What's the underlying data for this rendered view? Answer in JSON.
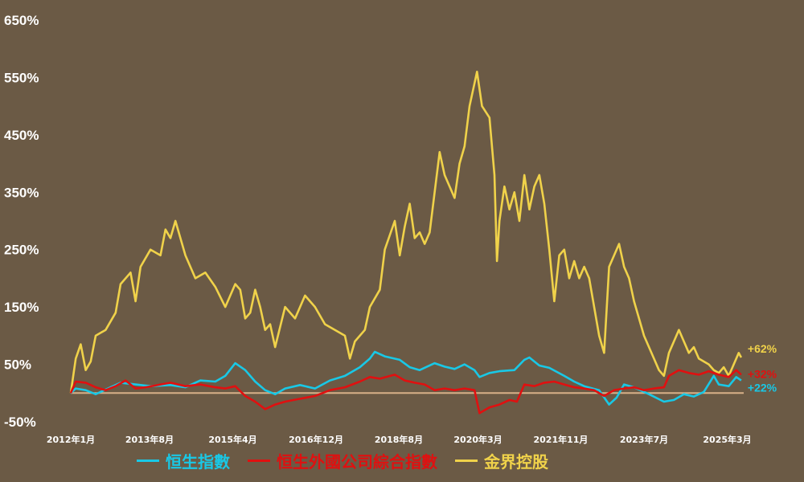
{
  "chart_data": {
    "type": "line",
    "title": "",
    "xlabel": "",
    "ylabel": "",
    "ylim": [
      -50,
      650
    ],
    "y_ticks": [
      "650%",
      "550%",
      "450%",
      "350%",
      "250%",
      "150%",
      "50%",
      "-50%"
    ],
    "y_tick_values": [
      650,
      550,
      450,
      350,
      250,
      150,
      50,
      -50
    ],
    "x_range": [
      2012.0,
      2025.5
    ],
    "x_ticks": [
      "2012年1月",
      "2013年8月",
      "2015年4月",
      "2016年12月",
      "2018年8月",
      "2020年3月",
      "2021年11月",
      "2023年7月",
      "2025年3月"
    ],
    "x_tick_values": [
      2012.0,
      2013.58,
      2015.25,
      2016.92,
      2018.58,
      2020.17,
      2021.83,
      2023.5,
      2025.17
    ],
    "zero_line": 0,
    "series": [
      {
        "name": "恒生指數",
        "color": "#19c8e6",
        "end_label": "+22%",
        "points": [
          [
            2012.0,
            0
          ],
          [
            2012.1,
            8
          ],
          [
            2012.3,
            5
          ],
          [
            2012.5,
            -2
          ],
          [
            2012.8,
            10
          ],
          [
            2013.0,
            18
          ],
          [
            2013.3,
            15
          ],
          [
            2013.6,
            12
          ],
          [
            2014.0,
            14
          ],
          [
            2014.3,
            10
          ],
          [
            2014.6,
            22
          ],
          [
            2014.9,
            20
          ],
          [
            2015.1,
            30
          ],
          [
            2015.3,
            52
          ],
          [
            2015.5,
            40
          ],
          [
            2015.7,
            20
          ],
          [
            2015.9,
            5
          ],
          [
            2016.1,
            -2
          ],
          [
            2016.3,
            8
          ],
          [
            2016.6,
            14
          ],
          [
            2016.9,
            8
          ],
          [
            2017.2,
            22
          ],
          [
            2017.5,
            30
          ],
          [
            2017.8,
            45
          ],
          [
            2018.0,
            60
          ],
          [
            2018.1,
            72
          ],
          [
            2018.3,
            64
          ],
          [
            2018.6,
            58
          ],
          [
            2018.8,
            45
          ],
          [
            2019.0,
            40
          ],
          [
            2019.3,
            52
          ],
          [
            2019.5,
            46
          ],
          [
            2019.7,
            42
          ],
          [
            2019.9,
            50
          ],
          [
            2020.1,
            40
          ],
          [
            2020.2,
            28
          ],
          [
            2020.4,
            35
          ],
          [
            2020.6,
            38
          ],
          [
            2020.9,
            40
          ],
          [
            2021.1,
            58
          ],
          [
            2021.2,
            62
          ],
          [
            2021.4,
            48
          ],
          [
            2021.6,
            44
          ],
          [
            2021.9,
            30
          ],
          [
            2022.1,
            20
          ],
          [
            2022.3,
            12
          ],
          [
            2022.6,
            5
          ],
          [
            2022.8,
            -20
          ],
          [
            2022.95,
            -8
          ],
          [
            2023.1,
            15
          ],
          [
            2023.3,
            10
          ],
          [
            2023.6,
            -2
          ],
          [
            2023.9,
            -15
          ],
          [
            2024.1,
            -12
          ],
          [
            2024.3,
            -2
          ],
          [
            2024.5,
            -6
          ],
          [
            2024.7,
            2
          ],
          [
            2024.9,
            30
          ],
          [
            2025.0,
            15
          ],
          [
            2025.2,
            12
          ],
          [
            2025.35,
            28
          ],
          [
            2025.45,
            22
          ]
        ]
      },
      {
        "name": "恒生外國公司綜合指數",
        "color": "#e01010",
        "end_label": "+32%",
        "points": [
          [
            2012.0,
            0
          ],
          [
            2012.1,
            20
          ],
          [
            2012.3,
            18
          ],
          [
            2012.5,
            10
          ],
          [
            2012.7,
            5
          ],
          [
            2012.9,
            12
          ],
          [
            2013.1,
            22
          ],
          [
            2013.3,
            8
          ],
          [
            2013.5,
            10
          ],
          [
            2013.8,
            15
          ],
          [
            2014.0,
            18
          ],
          [
            2014.3,
            12
          ],
          [
            2014.6,
            15
          ],
          [
            2014.9,
            10
          ],
          [
            2015.1,
            8
          ],
          [
            2015.3,
            12
          ],
          [
            2015.5,
            -5
          ],
          [
            2015.7,
            -15
          ],
          [
            2015.9,
            -28
          ],
          [
            2016.1,
            -20
          ],
          [
            2016.3,
            -15
          ],
          [
            2016.6,
            -10
          ],
          [
            2016.9,
            -5
          ],
          [
            2017.2,
            5
          ],
          [
            2017.5,
            10
          ],
          [
            2017.8,
            20
          ],
          [
            2018.0,
            28
          ],
          [
            2018.2,
            25
          ],
          [
            2018.5,
            32
          ],
          [
            2018.7,
            22
          ],
          [
            2018.9,
            18
          ],
          [
            2019.1,
            15
          ],
          [
            2019.3,
            5
          ],
          [
            2019.5,
            8
          ],
          [
            2019.7,
            5
          ],
          [
            2019.9,
            8
          ],
          [
            2020.1,
            5
          ],
          [
            2020.2,
            -35
          ],
          [
            2020.4,
            -25
          ],
          [
            2020.6,
            -20
          ],
          [
            2020.8,
            -12
          ],
          [
            2020.95,
            -15
          ],
          [
            2021.1,
            15
          ],
          [
            2021.3,
            12
          ],
          [
            2021.5,
            18
          ],
          [
            2021.7,
            20
          ],
          [
            2021.9,
            15
          ],
          [
            2022.1,
            10
          ],
          [
            2022.3,
            8
          ],
          [
            2022.5,
            5
          ],
          [
            2022.7,
            -5
          ],
          [
            2022.9,
            5
          ],
          [
            2023.1,
            8
          ],
          [
            2023.3,
            10
          ],
          [
            2023.5,
            5
          ],
          [
            2023.7,
            8
          ],
          [
            2023.9,
            10
          ],
          [
            2024.0,
            30
          ],
          [
            2024.2,
            40
          ],
          [
            2024.4,
            35
          ],
          [
            2024.6,
            32
          ],
          [
            2024.8,
            38
          ],
          [
            2025.0,
            32
          ],
          [
            2025.2,
            28
          ],
          [
            2025.35,
            40
          ],
          [
            2025.45,
            32
          ]
        ]
      },
      {
        "name": "金界控股",
        "color": "#f0d24a",
        "end_label": "+62%",
        "points": [
          [
            2012.0,
            0
          ],
          [
            2012.1,
            60
          ],
          [
            2012.2,
            85
          ],
          [
            2012.3,
            40
          ],
          [
            2012.4,
            55
          ],
          [
            2012.5,
            100
          ],
          [
            2012.7,
            110
          ],
          [
            2012.9,
            140
          ],
          [
            2013.0,
            190
          ],
          [
            2013.2,
            210
          ],
          [
            2013.3,
            160
          ],
          [
            2013.4,
            220
          ],
          [
            2013.6,
            250
          ],
          [
            2013.8,
            240
          ],
          [
            2013.9,
            285
          ],
          [
            2014.0,
            270
          ],
          [
            2014.1,
            300
          ],
          [
            2014.3,
            240
          ],
          [
            2014.5,
            200
          ],
          [
            2014.7,
            210
          ],
          [
            2014.9,
            185
          ],
          [
            2015.1,
            150
          ],
          [
            2015.3,
            190
          ],
          [
            2015.4,
            180
          ],
          [
            2015.5,
            130
          ],
          [
            2015.6,
            140
          ],
          [
            2015.7,
            180
          ],
          [
            2015.8,
            150
          ],
          [
            2015.9,
            110
          ],
          [
            2016.0,
            120
          ],
          [
            2016.1,
            80
          ],
          [
            2016.3,
            150
          ],
          [
            2016.5,
            130
          ],
          [
            2016.7,
            170
          ],
          [
            2016.9,
            150
          ],
          [
            2017.1,
            120
          ],
          [
            2017.3,
            110
          ],
          [
            2017.5,
            100
          ],
          [
            2017.6,
            60
          ],
          [
            2017.7,
            90
          ],
          [
            2017.9,
            110
          ],
          [
            2018.0,
            150
          ],
          [
            2018.2,
            180
          ],
          [
            2018.3,
            250
          ],
          [
            2018.5,
            300
          ],
          [
            2018.6,
            240
          ],
          [
            2018.7,
            290
          ],
          [
            2018.8,
            330
          ],
          [
            2018.9,
            270
          ],
          [
            2019.0,
            280
          ],
          [
            2019.1,
            260
          ],
          [
            2019.2,
            280
          ],
          [
            2019.3,
            350
          ],
          [
            2019.4,
            420
          ],
          [
            2019.5,
            380
          ],
          [
            2019.7,
            340
          ],
          [
            2019.8,
            400
          ],
          [
            2019.9,
            430
          ],
          [
            2020.0,
            500
          ],
          [
            2020.1,
            540
          ],
          [
            2020.15,
            560
          ],
          [
            2020.25,
            500
          ],
          [
            2020.4,
            480
          ],
          [
            2020.5,
            380
          ],
          [
            2020.55,
            230
          ],
          [
            2020.6,
            300
          ],
          [
            2020.7,
            360
          ],
          [
            2020.8,
            320
          ],
          [
            2020.9,
            350
          ],
          [
            2021.0,
            300
          ],
          [
            2021.1,
            380
          ],
          [
            2021.2,
            320
          ],
          [
            2021.3,
            360
          ],
          [
            2021.4,
            380
          ],
          [
            2021.5,
            330
          ],
          [
            2021.6,
            250
          ],
          [
            2021.7,
            160
          ],
          [
            2021.8,
            240
          ],
          [
            2021.9,
            250
          ],
          [
            2022.0,
            200
          ],
          [
            2022.1,
            230
          ],
          [
            2022.2,
            200
          ],
          [
            2022.3,
            220
          ],
          [
            2022.4,
            200
          ],
          [
            2022.5,
            150
          ],
          [
            2022.6,
            100
          ],
          [
            2022.7,
            70
          ],
          [
            2022.8,
            220
          ],
          [
            2022.9,
            240
          ],
          [
            2023.0,
            260
          ],
          [
            2023.1,
            220
          ],
          [
            2023.2,
            200
          ],
          [
            2023.3,
            160
          ],
          [
            2023.4,
            130
          ],
          [
            2023.5,
            100
          ],
          [
            2023.6,
            80
          ],
          [
            2023.7,
            60
          ],
          [
            2023.8,
            40
          ],
          [
            2023.9,
            30
          ],
          [
            2024.0,
            70
          ],
          [
            2024.1,
            90
          ],
          [
            2024.2,
            110
          ],
          [
            2024.3,
            90
          ],
          [
            2024.4,
            70
          ],
          [
            2024.5,
            80
          ],
          [
            2024.6,
            60
          ],
          [
            2024.8,
            50
          ],
          [
            2024.9,
            40
          ],
          [
            2025.0,
            35
          ],
          [
            2025.1,
            45
          ],
          [
            2025.2,
            30
          ],
          [
            2025.3,
            50
          ],
          [
            2025.4,
            70
          ],
          [
            2025.45,
            62
          ]
        ]
      }
    ],
    "legend_position": "bottom",
    "grid": false
  }
}
